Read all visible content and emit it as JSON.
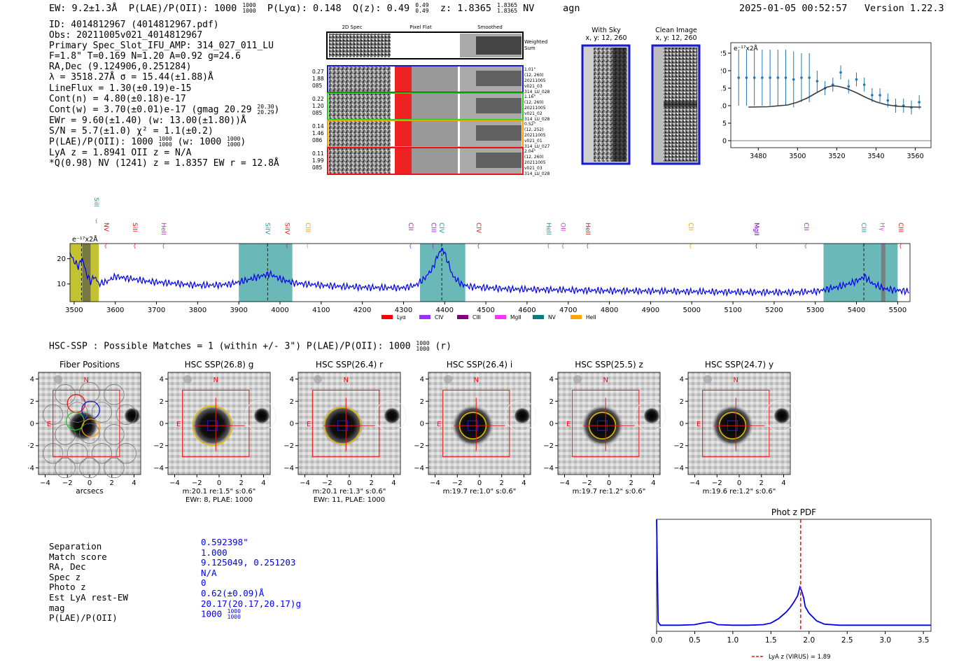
{
  "header": {
    "ew": "EW: 9.2±1.3Å",
    "plae_label": "P(LAE)/P(OII): 1000",
    "plae_hi": "1000",
    "plae_lo": "1000",
    "plya": "P(Lyα): 0.148",
    "qz_label": "Q(z): 0.49",
    "qz_hi": "0.49",
    "qz_lo": "0.49",
    "z_label": "z: 1.8365",
    "z_hi": "1.8365",
    "z_lo": "1.8365",
    "z_line": "NV",
    "agn": "agn",
    "timestamp": "2025-01-05 00:52:57",
    "version": "Version 1.22.3"
  },
  "info": {
    "id": "ID: 4014812967 (4014812967.pdf)",
    "obs": "Obs: 20211005v021_4014812967",
    "primary": "Primary Spec_Slot_IFU_AMP: 314_027_011_LU",
    "fiber": "F=1.8\"  T=0.169  N=1.20  A=0.92  g=24.6",
    "radec": "RA,Dec (9.124906,0.251284)",
    "lambda": "λ = 3518.27Å  σ = 15.44(±1.88)Å",
    "lineflux": "LineFlux = 1.30(±0.19)e-15",
    "contn": "Cont(n) = 4.80(±0.18)e-17",
    "contw": "Cont(w) = 3.70(±0.01)e-17 (gmag 20.29",
    "gmag_hi": "20.30",
    "gmag_lo": "20.29",
    "ewr": "EWr = 9.60(±1.40) (w: 13.00(±1.80))Å",
    "sn": "S/N = 5.7(±1.0)  χ² = 1.1(±0.2)",
    "plae": "P(LAE)/P(OII): 1000",
    "plae_hi": "1000",
    "plae_lo": "1000",
    "plae_w": "(w: 1000",
    "plae_w_hi": "1000",
    "plae_w_lo": "1000",
    "lya": "LyA z = 1.8941  OII z = N/A",
    "q": "*Q(0.98) NV  (1241) z = 1.8357  EW r = 12.8Å"
  },
  "cutouts": {
    "col_titles": [
      "2D Spec",
      "Pixel Flat",
      "Smoothed"
    ],
    "weighted": [
      "Weighted",
      "Sum"
    ],
    "rows": [
      {
        "left": [
          "0.27",
          "1.88",
          "085"
        ],
        "right": [
          "1.01\"",
          "(12, 260)",
          "20211005",
          "v021_03",
          "314_LU_028"
        ],
        "color": "#1a1acc"
      },
      {
        "left": [
          "0.22",
          "1.20",
          "085"
        ],
        "right": [
          "1.16\"",
          "(12, 260)",
          "20211005",
          "v021_02",
          "314_LU_028"
        ],
        "color": "#22cc22"
      },
      {
        "left": [
          "0.14",
          "1.46",
          "086"
        ],
        "right": [
          "0.52\"",
          "(12, 252)",
          "20211005",
          "v021_01",
          "314_LU_027"
        ],
        "color": "#ff9900"
      },
      {
        "left": [
          "0.11",
          "1.99",
          "085"
        ],
        "right": [
          "2.04\"",
          "(12, 260)",
          "20211005",
          "v021_03",
          "314_LU_028"
        ],
        "color": "#ee1111"
      }
    ]
  },
  "sky": {
    "with_sky_title": "With Sky",
    "with_sky_xy": "x, y: 12, 260",
    "clean_title": "Clean Image",
    "clean_xy": "x, y: 12, 260"
  },
  "line_fit": {
    "scale_label": "e⁻¹⁷x2Å",
    "x_ticks": [
      "3480",
      "3500",
      "3520",
      "3540",
      "3560"
    ],
    "y_ticks": [
      "0",
      "5",
      "10",
      "15",
      "20",
      "25"
    ]
  },
  "chart_data": [
    {
      "type": "scatter",
      "title": "",
      "xlabel": "",
      "ylabel": "e⁻¹⁷x2Å",
      "xlim": [
        3466,
        3568
      ],
      "ylim": [
        -2,
        28
      ],
      "series": [
        {
          "name": "data",
          "x": [
            3470,
            3474,
            3478,
            3482,
            3486,
            3490,
            3494,
            3498,
            3502,
            3506,
            3510,
            3514,
            3518,
            3522,
            3526,
            3530,
            3534,
            3538,
            3542,
            3546,
            3550,
            3554,
            3558,
            3562
          ],
          "y": [
            18,
            18,
            18,
            18,
            18,
            18,
            18,
            17.5,
            18,
            18,
            17,
            15,
            16,
            19.5,
            15.5,
            17.5,
            16,
            13,
            13,
            11.5,
            10,
            10,
            9.5,
            11
          ],
          "err": [
            8,
            8,
            8,
            8,
            8,
            8,
            8,
            8,
            7,
            7,
            3,
            2,
            2,
            2,
            2,
            2,
            2,
            2,
            2,
            2,
            2,
            2,
            2,
            2
          ]
        },
        {
          "name": "gaussian fit",
          "x": [
            3475,
            3485,
            3495,
            3500,
            3505,
            3510,
            3515,
            3518,
            3521,
            3525,
            3530,
            3535,
            3540,
            3545,
            3550,
            3555,
            3560,
            3563
          ],
          "y": [
            9.6,
            9.7,
            10.2,
            11,
            12.2,
            13.8,
            15.3,
            15.7,
            15.5,
            14.9,
            13.7,
            12.3,
            11.1,
            10.3,
            9.9,
            9.7,
            9.6,
            9.6
          ]
        }
      ]
    },
    {
      "type": "line",
      "title": "",
      "xlabel": "",
      "ylabel": "e⁻¹⁷x2Å",
      "xlim": [
        3490,
        5530
      ],
      "ylim": [
        3,
        26
      ],
      "y_ticks": [
        10,
        20
      ],
      "x_ticks": [
        3500,
        3600,
        3700,
        3800,
        3900,
        4000,
        4100,
        4200,
        4300,
        4400,
        4500,
        4600,
        4700,
        4800,
        4900,
        5000,
        5100,
        5200,
        5300,
        5400,
        5500
      ],
      "series": [
        {
          "name": "spectrum",
          "x": [
            3490,
            3500,
            3510,
            3520,
            3530,
            3540,
            3550,
            3560,
            3580,
            3600,
            3640,
            3680,
            3720,
            3760,
            3800,
            3840,
            3880,
            3920,
            3950,
            3975,
            4000,
            4030,
            4060,
            4100,
            4150,
            4200,
            4250,
            4300,
            4330,
            4350,
            4370,
            4385,
            4395,
            4405,
            4420,
            4440,
            4460,
            4500,
            4560,
            4620,
            4700,
            4800,
            4900,
            5000,
            5100,
            5200,
            5250,
            5300,
            5330,
            5360,
            5390,
            5410,
            5420,
            5440,
            5470,
            5500,
            5530
          ],
          "y": [
            22,
            19,
            17,
            20,
            14,
            11,
            13,
            10,
            11,
            13,
            12,
            11,
            10.5,
            10,
            9.5,
            9.5,
            10,
            11.5,
            13,
            14,
            12,
            10.5,
            10,
            9.5,
            9,
            8.7,
            8.5,
            8.5,
            9.5,
            12,
            16,
            22,
            24,
            20,
            13,
            10,
            9,
            8.5,
            8,
            7.8,
            7.6,
            7.3,
            7.2,
            7,
            6.8,
            6.7,
            6.7,
            7,
            8,
            9,
            10.5,
            12,
            13,
            10,
            8,
            7.5,
            7
          ]
        }
      ],
      "shaded_regions": [
        {
          "x0": 3490,
          "x1": 3560,
          "color": "#b3b300",
          "label": "Lyα sky region"
        },
        {
          "x0": 3520,
          "x1": 3540,
          "color": "#6b6b47",
          "label": "hatched"
        },
        {
          "x0": 3900,
          "x1": 4030,
          "color": "#45a6a6",
          "label": "SiIV"
        },
        {
          "x0": 4340,
          "x1": 4450,
          "color": "#45a6a6",
          "label": "CIV"
        },
        {
          "x0": 5320,
          "x1": 5500,
          "color": "#45a6a6",
          "label": "CIII"
        },
        {
          "x0": 5460,
          "x1": 5470,
          "color": "#777777",
          "label": "hatched"
        }
      ],
      "line_markers": [
        {
          "x": 3555,
          "label": "SiII",
          "color": "#1a9999",
          "high": true
        },
        {
          "x": 3578,
          "label": "NV",
          "color": "#ee1111"
        },
        {
          "x": 3648,
          "label": "SiII",
          "color": "#ee1111"
        },
        {
          "x": 3718,
          "label": "HeII",
          "color": "#aa33cc"
        },
        {
          "x": 3970,
          "label": "SiIV",
          "color": "#1a9999"
        },
        {
          "x": 4018,
          "label": "SiIV",
          "color": "#ee1111"
        },
        {
          "x": 4068,
          "label": "CIII",
          "color": "#ff9900"
        },
        {
          "x": 4318,
          "label": "CII",
          "color": "#9922cc"
        },
        {
          "x": 4373,
          "label": "CIII",
          "color": "#9922cc"
        },
        {
          "x": 4393,
          "label": "CIV",
          "color": "#1a9999"
        },
        {
          "x": 4483,
          "label": "CIV",
          "color": "#ee1111"
        },
        {
          "x": 4653,
          "label": "HeII",
          "color": "#1a9999"
        },
        {
          "x": 4688,
          "label": "OII",
          "color": "#cc33cc"
        },
        {
          "x": 4748,
          "label": "HeII",
          "color": "#ee1111"
        },
        {
          "x": 4998,
          "label": "CII",
          "color": "#ff9900"
        },
        {
          "x": 5158,
          "label": "MgII",
          "color": "#6600aa"
        },
        {
          "x": 5278,
          "label": "CII",
          "color": "#9922cc"
        },
        {
          "x": 5418,
          "label": "CIII",
          "color": "#1a9999"
        },
        {
          "x": 5463,
          "label": "Hγ",
          "color": "#ff33ff"
        },
        {
          "x": 5508,
          "label": "CIII",
          "color": "#ee1111"
        }
      ],
      "dashed_lines": [
        3518,
        3970,
        4393,
        5418
      ],
      "legend": [
        {
          "label": "Lyα",
          "color": "#ff0000"
        },
        {
          "label": "CIV",
          "color": "#9933ff"
        },
        {
          "label": "CIII",
          "color": "#800080"
        },
        {
          "label": "MgII",
          "color": "#ff33ff"
        },
        {
          "label": "NV",
          "color": "#008080"
        },
        {
          "label": "HeII",
          "color": "#ffa500"
        }
      ]
    },
    {
      "type": "line",
      "title": "Phot z PDF",
      "xlabel": "",
      "ylabel": "",
      "xlim": [
        0.0,
        3.6
      ],
      "ylim": [
        0,
        1
      ],
      "x_ticks": [
        "0.0",
        "0.5",
        "1.0",
        "1.5",
        "2.0",
        "2.5",
        "3.0",
        "3.5"
      ],
      "series": [
        {
          "name": "pdf",
          "x": [
            0.0,
            0.02,
            0.05,
            0.1,
            0.3,
            0.5,
            0.6,
            0.7,
            0.75,
            0.8,
            1.0,
            1.2,
            1.4,
            1.5,
            1.6,
            1.7,
            1.75,
            1.8,
            1.85,
            1.88,
            1.9,
            1.93,
            1.95,
            2.0,
            2.1,
            2.2,
            2.4,
            2.8,
            3.2,
            3.6
          ],
          "y": [
            1.0,
            0.06,
            0.03,
            0.03,
            0.03,
            0.035,
            0.05,
            0.06,
            0.05,
            0.035,
            0.03,
            0.03,
            0.035,
            0.05,
            0.09,
            0.15,
            0.19,
            0.24,
            0.3,
            0.38,
            0.35,
            0.28,
            0.2,
            0.14,
            0.07,
            0.04,
            0.03,
            0.03,
            0.03,
            0.03
          ]
        }
      ],
      "vline": {
        "x": 1.89,
        "color": "#ee1111"
      },
      "legend": "LyA z (VIRUS) = 1.89"
    }
  ],
  "hsc": {
    "header": "HSC-SSP : Possible Matches = 1 (within +/- 3\")  P(LAE)/P(OII): 1000",
    "plae_hi": "1000",
    "plae_lo": "1000",
    "band": "(r)",
    "y_ticks": [
      "4",
      "2",
      "0",
      "−2",
      "−4"
    ],
    "x_ticks": [
      "−4",
      "−2",
      "0",
      "2",
      "4"
    ],
    "panels": [
      {
        "title": "Fiber Positions",
        "caption1": "arcsecs",
        "caption2": ""
      },
      {
        "title": "HSC SSP(26.8) g",
        "caption1": "m:20.1  re:1.5\"  s:0.6\"",
        "caption2": "EWr: 8, PLAE: 1000"
      },
      {
        "title": "HSC SSP(26.4) r",
        "caption1": "m:20.1  re:1.3\"  s:0.6\"",
        "caption2": "EWr: 11, PLAE: 1000"
      },
      {
        "title": "HSC SSP(26.4) i",
        "caption1": "m:19.7  re:1.0\"  s:0.6\"",
        "caption2": ""
      },
      {
        "title": "HSC SSP(25.5) z",
        "caption1": "m:19.7  re:1.2\"  s:0.6\"",
        "caption2": ""
      },
      {
        "title": "HSC SSP(24.7) y",
        "caption1": "m:19.6  re:1.2\"  s:0.6\"",
        "caption2": ""
      }
    ],
    "n_label": "N",
    "e_label": "E"
  },
  "match": {
    "labels": [
      "Separation",
      "Match score",
      "RA, Dec",
      "Spec z",
      "Photo z",
      "Est LyA rest-EW",
      "mag",
      "P(LAE)/P(OII)"
    ],
    "values": [
      "0.592398\"",
      "1.000",
      "9.125049, 0.251203",
      "N/A",
      "0",
      "0.62(±0.09)Å",
      "20.17(20.17,20.17)g",
      "1000"
    ],
    "plae_hi": "1000",
    "plae_lo": "1000"
  },
  "colors": {
    "spectrum": "#0000ee",
    "fit": "#1f77b4",
    "teal": "#45a6a6",
    "olive": "#b3b300",
    "red": "#ee1111",
    "blue_text": "#0000ee"
  }
}
